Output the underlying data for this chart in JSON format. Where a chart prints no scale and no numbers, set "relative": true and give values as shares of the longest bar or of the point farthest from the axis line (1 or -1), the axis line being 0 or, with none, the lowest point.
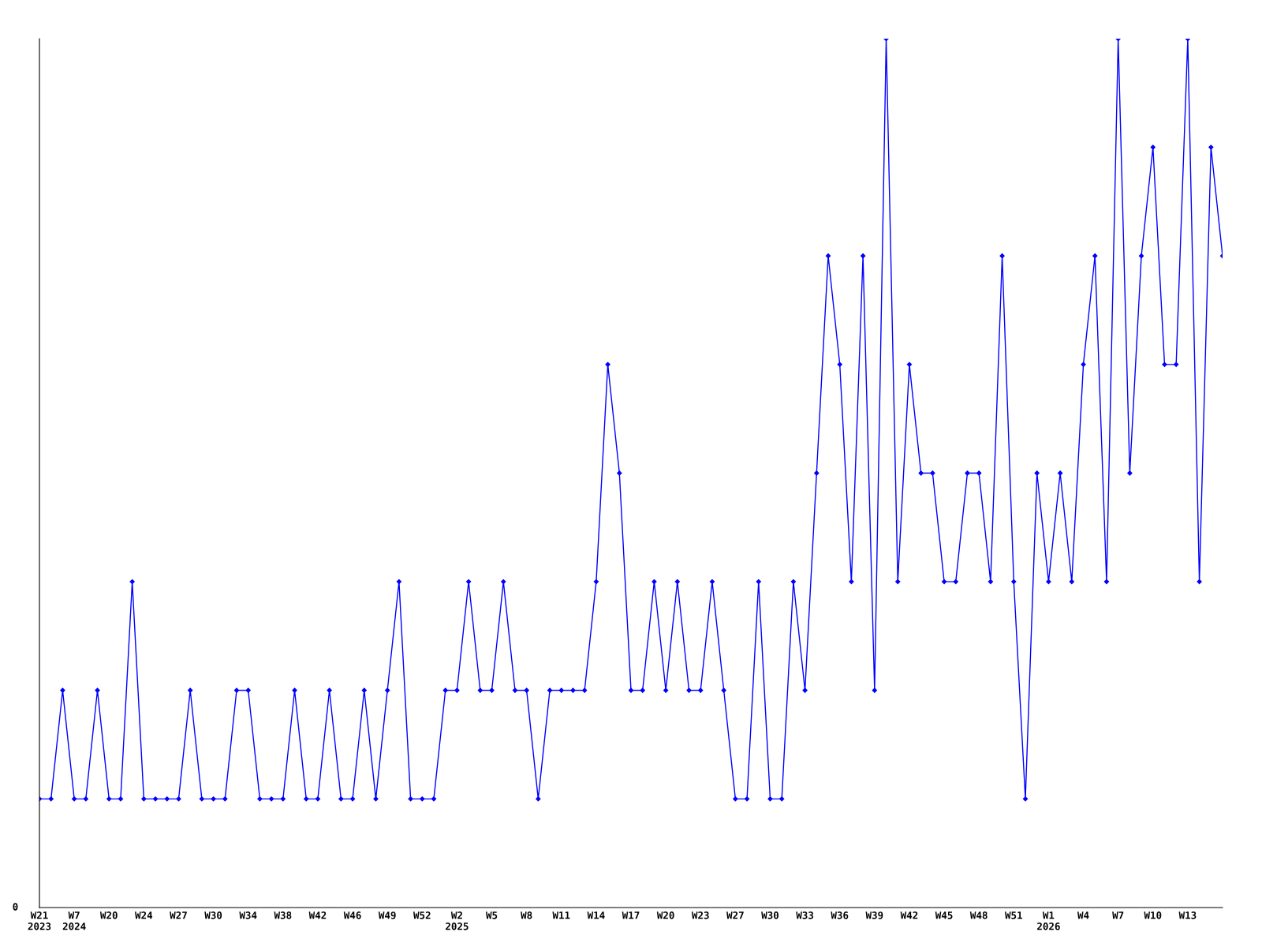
{
  "chart_data": {
    "type": "line",
    "relative": true,
    "color": "#0000ff",
    "marker": "diamond",
    "grid": false,
    "annotations": [
      "0"
    ],
    "categories": [
      "W21\n2023",
      null,
      null,
      "W7\n2024",
      null,
      null,
      "W20",
      null,
      null,
      "W24",
      null,
      null,
      "W27",
      null,
      null,
      "W30",
      null,
      null,
      "W34",
      null,
      null,
      "W38",
      null,
      null,
      "W42",
      null,
      null,
      "W46",
      null,
      null,
      "W49",
      null,
      null,
      "W52",
      null,
      null,
      "W2\n2025",
      null,
      null,
      "W5",
      null,
      null,
      "W8",
      null,
      null,
      "W11",
      null,
      null,
      "W14",
      null,
      null,
      "W17",
      null,
      null,
      "W20",
      null,
      null,
      "W23",
      null,
      null,
      "W27",
      null,
      null,
      "W30",
      null,
      null,
      "W33",
      null,
      null,
      "W36",
      null,
      null,
      "W39",
      null,
      null,
      "W42",
      null,
      null,
      "W45",
      null,
      null,
      "W48",
      null,
      null,
      "W51",
      null,
      null,
      "W1\n2026",
      null,
      null,
      "W4",
      null,
      null,
      "W7",
      null,
      null,
      "W10",
      null,
      null,
      "W13",
      null,
      null,
      null
    ],
    "values": [
      0.125,
      0.125,
      0.25,
      0.125,
      0.125,
      0.25,
      0.125,
      0.125,
      0.375,
      0.125,
      0.125,
      0.125,
      0.125,
      0.25,
      0.125,
      0.125,
      0.125,
      0.25,
      0.25,
      0.125,
      0.125,
      0.125,
      0.25,
      0.125,
      0.125,
      0.25,
      0.125,
      0.125,
      0.25,
      0.125,
      0.25,
      0.375,
      0.125,
      0.125,
      0.125,
      0.25,
      0.25,
      0.375,
      0.25,
      0.25,
      0.375,
      0.25,
      0.25,
      0.125,
      0.25,
      0.25,
      0.25,
      0.25,
      0.375,
      0.625,
      0.5,
      0.25,
      0.25,
      0.375,
      0.25,
      0.375,
      0.25,
      0.25,
      0.375,
      0.25,
      0.125,
      0.125,
      0.375,
      0.125,
      0.125,
      0.375,
      0.25,
      0.5,
      0.75,
      0.625,
      0.375,
      0.75,
      0.25,
      1,
      0.375,
      0.625,
      0.5,
      0.5,
      0.375,
      0.375,
      0.5,
      0.5,
      0.375,
      0.75,
      0.375,
      0.125,
      0.5,
      0.375,
      0.5,
      0.375,
      0.625,
      0.75,
      0.375,
      1,
      0.5,
      0.75,
      0.875,
      0.625,
      0.625,
      1,
      0.375,
      0.875,
      0.75
    ]
  }
}
